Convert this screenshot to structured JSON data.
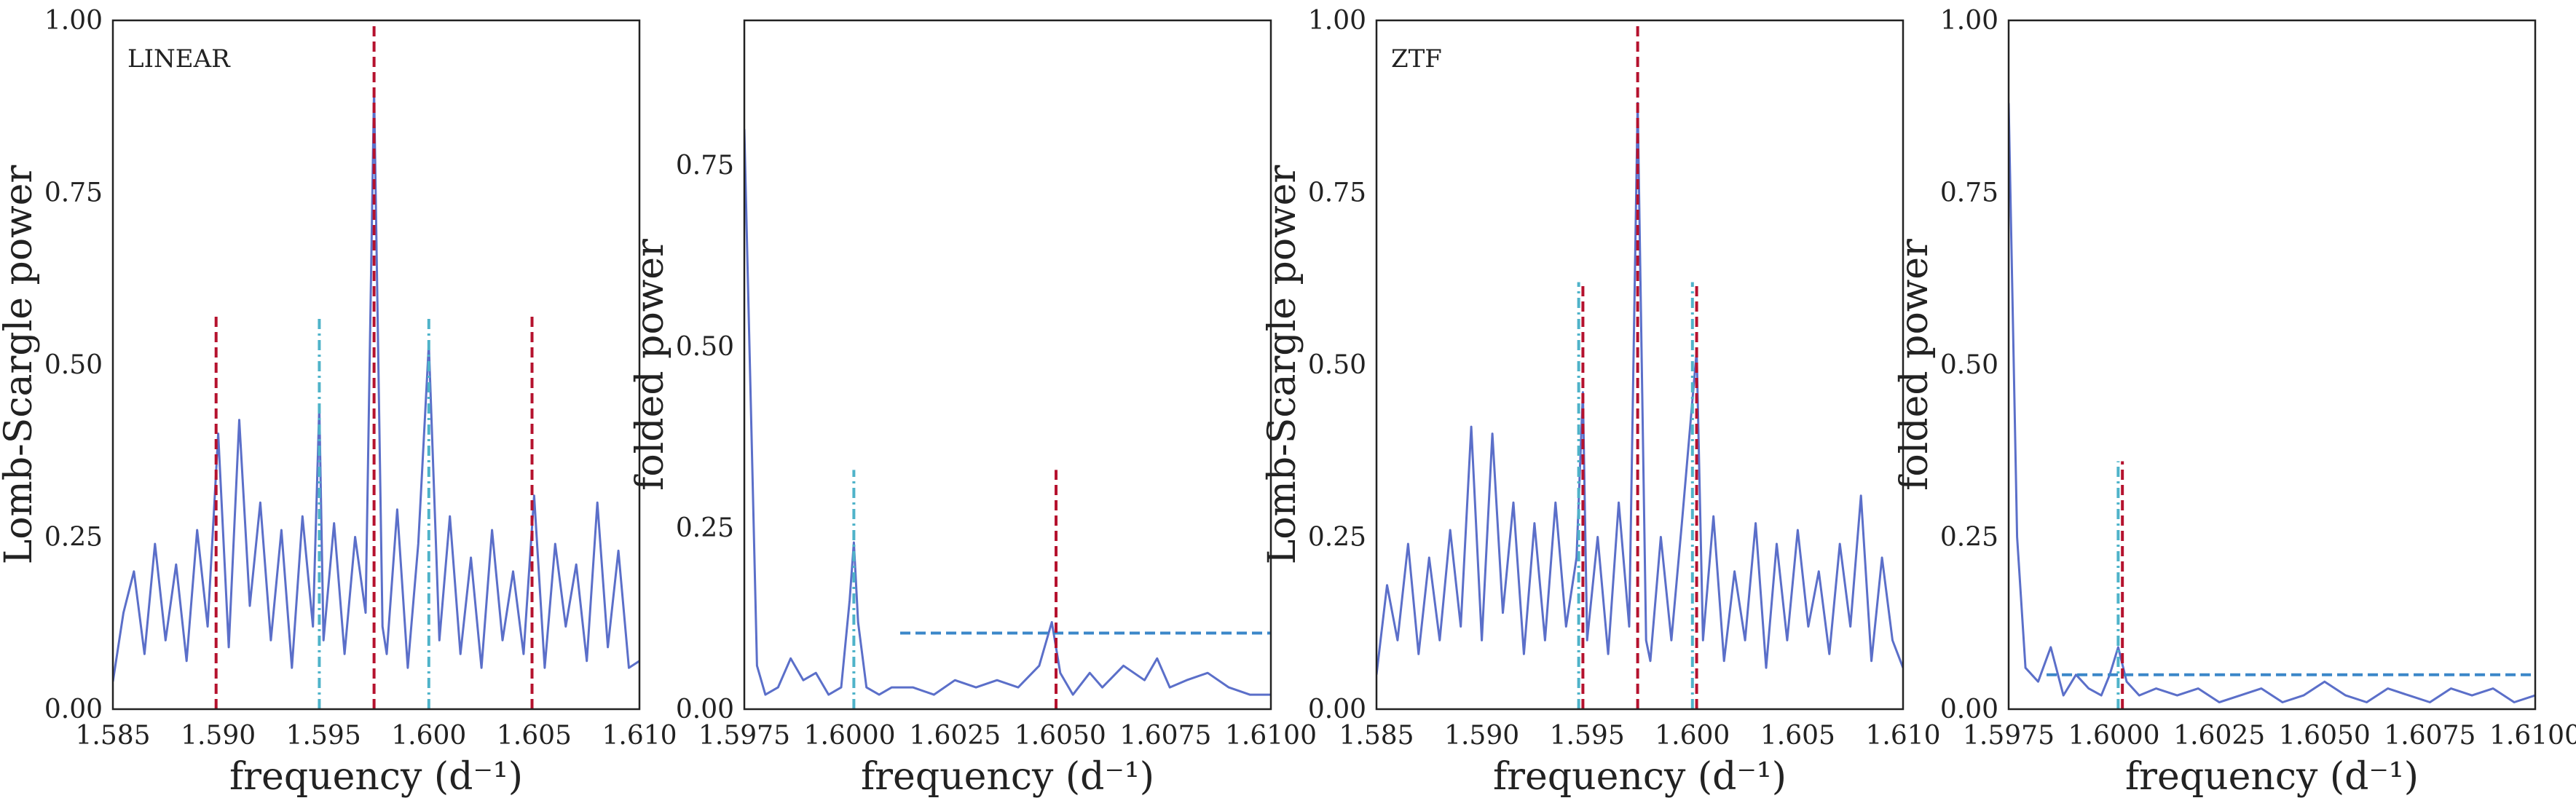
{
  "chart_data": [
    {
      "type": "line",
      "panel_label": "LINEAR",
      "xlabel": "frequency (d⁻¹)",
      "ylabel": "Lomb-Scargle power",
      "xlim": [
        1.585,
        1.61
      ],
      "ylim": [
        0,
        1.0
      ],
      "xticks": [
        "1.585",
        "1.590",
        "1.595",
        "1.600",
        "1.605",
        "1.610"
      ],
      "yticks": [
        "0.00",
        "0.25",
        "0.50",
        "0.75",
        "1.00"
      ],
      "grid": false,
      "series": [
        {
          "color": "#5b6fc9",
          "x": [
            1.585,
            1.5855,
            1.586,
            1.5865,
            1.587,
            1.5875,
            1.588,
            1.5885,
            1.589,
            1.5895,
            1.59,
            1.5905,
            1.591,
            1.5915,
            1.592,
            1.5925,
            1.593,
            1.5935,
            1.594,
            1.5945,
            1.5948,
            1.595,
            1.5955,
            1.596,
            1.5965,
            1.597,
            1.5974,
            1.5978,
            1.598,
            1.5985,
            1.599,
            1.5995,
            1.6,
            1.6005,
            1.601,
            1.6015,
            1.602,
            1.6025,
            1.603,
            1.6035,
            1.604,
            1.6045,
            1.605,
            1.6055,
            1.606,
            1.6065,
            1.607,
            1.6075,
            1.608,
            1.6085,
            1.609,
            1.6095,
            1.61
          ],
          "y": [
            0.04,
            0.14,
            0.2,
            0.08,
            0.24,
            0.1,
            0.21,
            0.07,
            0.26,
            0.12,
            0.4,
            0.09,
            0.42,
            0.15,
            0.3,
            0.1,
            0.26,
            0.06,
            0.28,
            0.12,
            0.44,
            0.1,
            0.27,
            0.08,
            0.25,
            0.14,
            0.9,
            0.12,
            0.08,
            0.29,
            0.06,
            0.24,
            0.53,
            0.1,
            0.28,
            0.08,
            0.22,
            0.06,
            0.26,
            0.1,
            0.2,
            0.08,
            0.31,
            0.06,
            0.24,
            0.12,
            0.21,
            0.07,
            0.3,
            0.09,
            0.23,
            0.06,
            0.07
          ]
        }
      ],
      "vlines": [
        {
          "x": 1.5974,
          "y0": 0,
          "y1": 1.0,
          "color": "#b5122e",
          "style": "dashed"
        },
        {
          "x": 1.5899,
          "y0": 0,
          "y1": 0.57,
          "color": "#b5122e",
          "style": "dashed"
        },
        {
          "x": 1.6049,
          "y0": 0,
          "y1": 0.57,
          "color": "#b5122e",
          "style": "dashed"
        },
        {
          "x": 1.5948,
          "y0": 0,
          "y1": 0.57,
          "color": "#4fb3c9",
          "style": "dashdot"
        },
        {
          "x": 1.6,
          "y0": 0,
          "y1": 0.57,
          "color": "#4fb3c9",
          "style": "dashdot"
        }
      ],
      "hlines": []
    },
    {
      "type": "line",
      "panel_label": "",
      "xlabel": "frequency (d⁻¹)",
      "ylabel": "folded power",
      "xlim": [
        1.5975,
        1.61
      ],
      "ylim": [
        0,
        0.95
      ],
      "xticks": [
        "1.5975",
        "1.6000",
        "1.6025",
        "1.6050",
        "1.6075",
        "1.6100"
      ],
      "yticks": [
        "0.00",
        "0.25",
        "0.50",
        "0.75"
      ],
      "grid": false,
      "series": [
        {
          "color": "#5b6fc9",
          "x": [
            1.5975,
            1.5978,
            1.598,
            1.5983,
            1.5986,
            1.5989,
            1.5992,
            1.5995,
            1.5998,
            1.6,
            1.6001,
            1.6002,
            1.6004,
            1.6007,
            1.601,
            1.6015,
            1.602,
            1.6025,
            1.603,
            1.6035,
            1.604,
            1.6045,
            1.6048,
            1.605,
            1.6053,
            1.6057,
            1.606,
            1.6065,
            1.607,
            1.6073,
            1.6076,
            1.608,
            1.6085,
            1.609,
            1.6095,
            1.61
          ],
          "y": [
            0.8,
            0.06,
            0.02,
            0.03,
            0.07,
            0.04,
            0.05,
            0.02,
            0.03,
            0.15,
            0.23,
            0.12,
            0.03,
            0.02,
            0.03,
            0.03,
            0.02,
            0.04,
            0.03,
            0.04,
            0.03,
            0.06,
            0.12,
            0.05,
            0.02,
            0.05,
            0.03,
            0.06,
            0.04,
            0.07,
            0.03,
            0.04,
            0.05,
            0.03,
            0.02,
            0.02
          ]
        }
      ],
      "vlines": [
        {
          "x": 1.6001,
          "y0": 0,
          "y1": 0.33,
          "color": "#4fb3c9",
          "style": "dashdot"
        },
        {
          "x": 1.6049,
          "y0": 0,
          "y1": 0.33,
          "color": "#b5122e",
          "style": "dashed"
        }
      ],
      "hlines": [
        {
          "y": 0.105,
          "x0": 1.6012,
          "x1": 1.61,
          "color": "#3b87c9",
          "style": "dashed"
        }
      ]
    },
    {
      "type": "line",
      "panel_label": "ZTF",
      "xlabel": "frequency (d⁻¹)",
      "ylabel": "Lomb-Scargle power",
      "xlim": [
        1.585,
        1.61
      ],
      "ylim": [
        0,
        1.0
      ],
      "xticks": [
        "1.585",
        "1.590",
        "1.595",
        "1.600",
        "1.605",
        "1.610"
      ],
      "yticks": [
        "0.00",
        "0.25",
        "0.50",
        "0.75",
        "1.00"
      ],
      "grid": false,
      "series": [
        {
          "color": "#5b6fc9",
          "x": [
            1.585,
            1.5855,
            1.586,
            1.5865,
            1.587,
            1.5875,
            1.588,
            1.5885,
            1.589,
            1.5895,
            1.59,
            1.5905,
            1.591,
            1.5915,
            1.592,
            1.5925,
            1.593,
            1.5935,
            1.594,
            1.5945,
            1.5948,
            1.595,
            1.5955,
            1.596,
            1.5965,
            1.597,
            1.5974,
            1.5978,
            1.598,
            1.5985,
            1.599,
            1.5995,
            1.6002,
            1.6005,
            1.601,
            1.6015,
            1.602,
            1.6025,
            1.603,
            1.6035,
            1.604,
            1.6045,
            1.605,
            1.6055,
            1.606,
            1.6065,
            1.607,
            1.6075,
            1.608,
            1.6085,
            1.609,
            1.6095,
            1.61
          ],
          "y": [
            0.05,
            0.18,
            0.1,
            0.24,
            0.08,
            0.22,
            0.1,
            0.26,
            0.12,
            0.41,
            0.1,
            0.4,
            0.14,
            0.3,
            0.08,
            0.27,
            0.1,
            0.3,
            0.12,
            0.22,
            0.46,
            0.1,
            0.25,
            0.08,
            0.3,
            0.12,
            0.88,
            0.1,
            0.07,
            0.25,
            0.1,
            0.27,
            0.52,
            0.1,
            0.28,
            0.07,
            0.2,
            0.1,
            0.27,
            0.06,
            0.24,
            0.1,
            0.26,
            0.12,
            0.2,
            0.08,
            0.24,
            0.12,
            0.31,
            0.07,
            0.22,
            0.1,
            0.06
          ]
        }
      ],
      "vlines": [
        {
          "x": 1.5974,
          "y0": 0,
          "y1": 1.0,
          "color": "#b5122e",
          "style": "dashed"
        },
        {
          "x": 1.5948,
          "y0": 0,
          "y1": 0.62,
          "color": "#b5122e",
          "style": "dashed"
        },
        {
          "x": 1.6002,
          "y0": 0,
          "y1": 0.62,
          "color": "#b5122e",
          "style": "dashed"
        },
        {
          "x": 1.5946,
          "y0": 0,
          "y1": 0.62,
          "color": "#4fb3c9",
          "style": "dashdot"
        },
        {
          "x": 1.6,
          "y0": 0,
          "y1": 0.62,
          "color": "#4fb3c9",
          "style": "dashdot"
        }
      ],
      "hlines": []
    },
    {
      "type": "line",
      "panel_label": "",
      "xlabel": "frequency (d⁻¹)",
      "ylabel": "folded power",
      "xlim": [
        1.5975,
        1.61
      ],
      "ylim": [
        0,
        1.0
      ],
      "xticks": [
        "1.5975",
        "1.6000",
        "1.6025",
        "1.6050",
        "1.6075",
        "1.6100"
      ],
      "yticks": [
        "0.00",
        "0.25",
        "0.50",
        "0.75",
        "1.00"
      ],
      "grid": false,
      "series": [
        {
          "color": "#5b6fc9",
          "x": [
            1.5975,
            1.5977,
            1.5979,
            1.5982,
            1.5985,
            1.5988,
            1.5991,
            1.5994,
            1.5997,
            1.5999,
            1.6001,
            1.6003,
            1.6006,
            1.601,
            1.6015,
            1.602,
            1.6025,
            1.603,
            1.6035,
            1.604,
            1.6045,
            1.605,
            1.6055,
            1.606,
            1.6065,
            1.607,
            1.6075,
            1.608,
            1.6085,
            1.609,
            1.6095,
            1.61
          ],
          "y": [
            0.88,
            0.25,
            0.06,
            0.04,
            0.09,
            0.02,
            0.05,
            0.03,
            0.02,
            0.05,
            0.09,
            0.04,
            0.02,
            0.03,
            0.02,
            0.03,
            0.01,
            0.02,
            0.03,
            0.01,
            0.02,
            0.04,
            0.02,
            0.01,
            0.03,
            0.02,
            0.01,
            0.03,
            0.02,
            0.03,
            0.01,
            0.02
          ]
        }
      ],
      "vlines": [
        {
          "x": 1.6001,
          "y0": 0,
          "y1": 0.36,
          "color": "#4fb3c9",
          "style": "dashdot"
        },
        {
          "x": 1.6002,
          "y0": 0,
          "y1": 0.36,
          "color": "#b5122e",
          "style": "dashed"
        }
      ],
      "hlines": [
        {
          "y": 0.05,
          "x0": 1.5984,
          "x1": 1.61,
          "color": "#3b87c9",
          "style": "dashed"
        }
      ]
    }
  ]
}
